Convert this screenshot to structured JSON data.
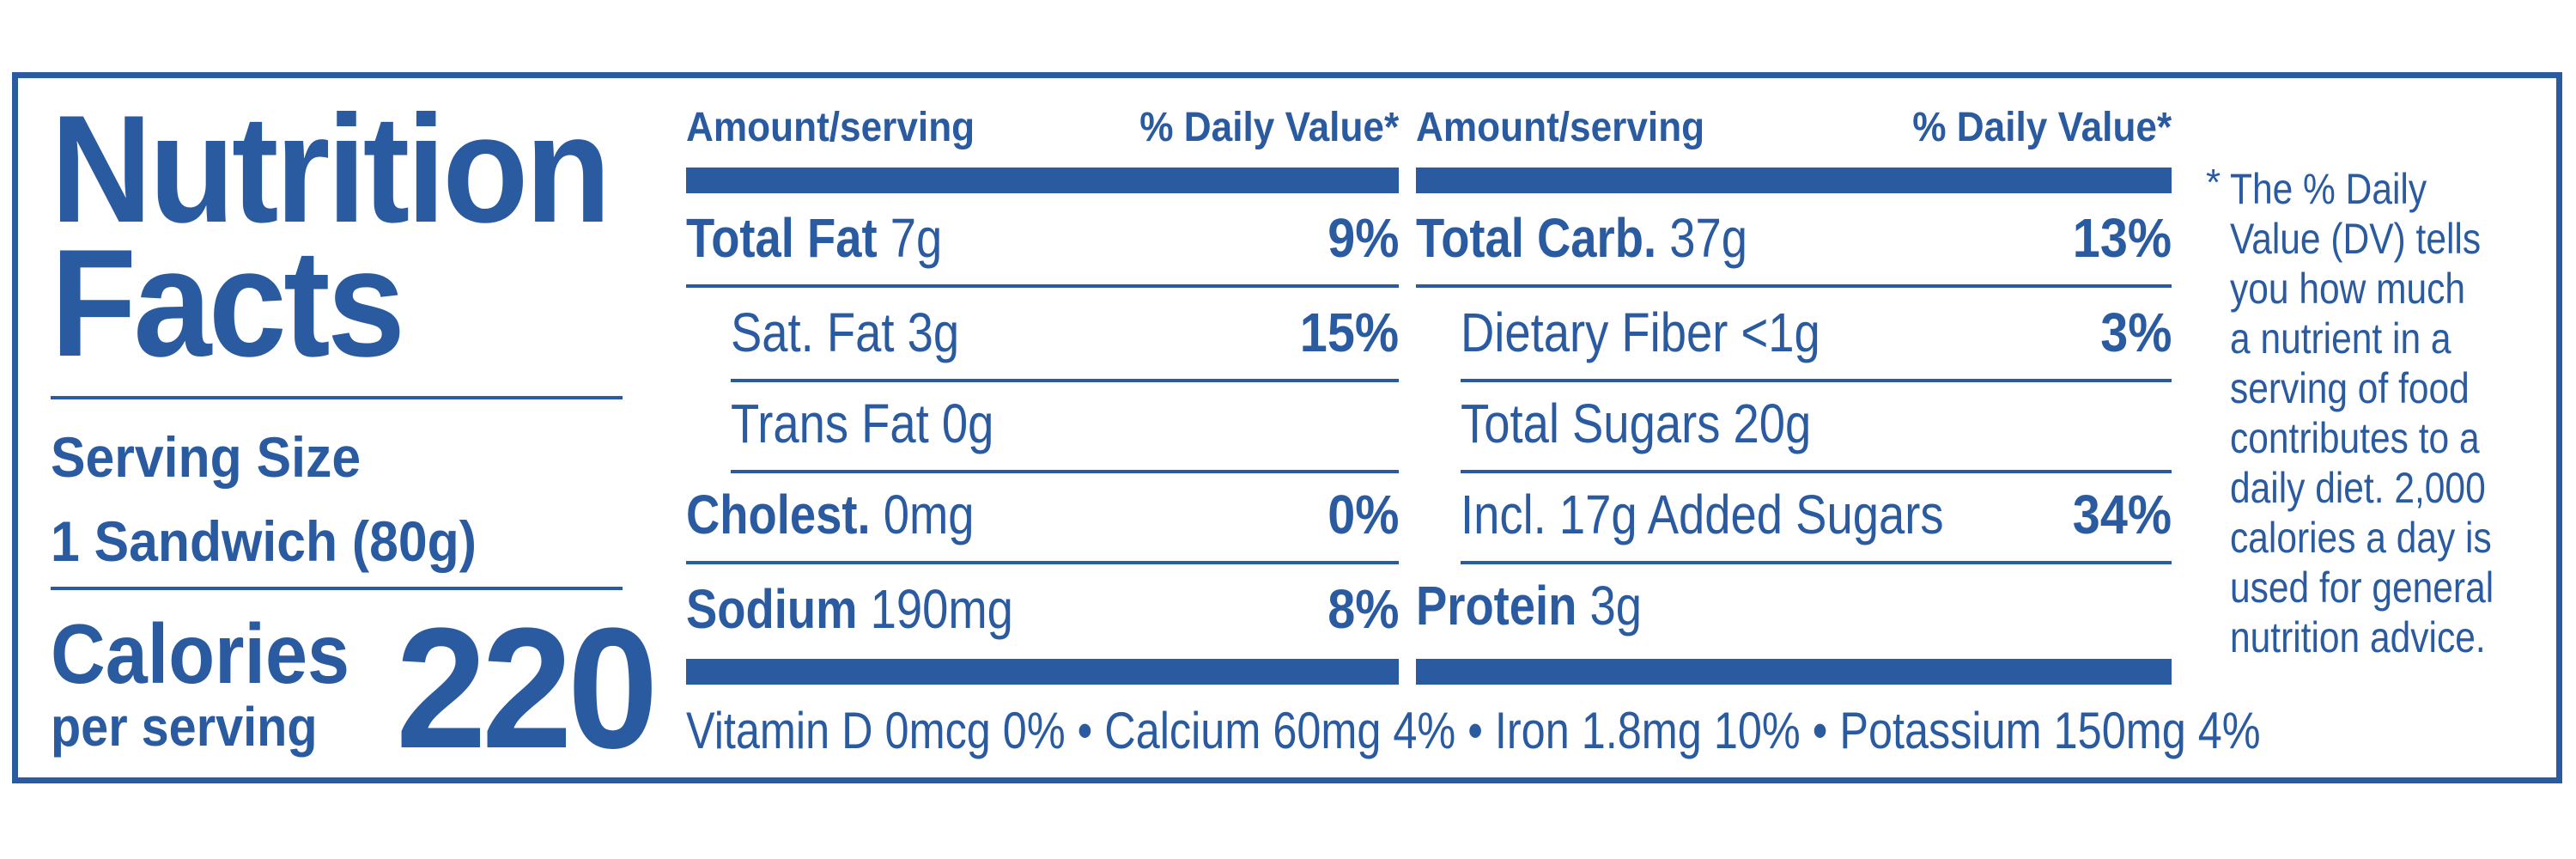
{
  "title_lines": [
    "Nutrition",
    "Facts"
  ],
  "serving": {
    "label": "Serving Size",
    "value": "1 Sandwich (80g)"
  },
  "calories": {
    "label": "Calories",
    "sub": "per serving",
    "value": "220"
  },
  "header": {
    "amount": "Amount/serving",
    "dv": "% Daily Value*"
  },
  "left_rows": [
    {
      "name": "Total Fat",
      "amount": " 7g",
      "dv": "9%"
    },
    {
      "name": "",
      "amount": "Sat. Fat 3g",
      "dv": "15%"
    },
    {
      "name": "",
      "amount": "Trans Fat 0g",
      "dv": ""
    },
    {
      "name": "Cholest.",
      "amount": " 0mg",
      "dv": "0%"
    },
    {
      "name": "Sodium",
      "amount": " 190mg",
      "dv": "8%"
    }
  ],
  "right_rows": [
    {
      "name": "Total Carb.",
      "amount": " 37g",
      "dv": "13%"
    },
    {
      "name": "",
      "amount": "Dietary Fiber <1g",
      "dv": "3%"
    },
    {
      "name": "",
      "amount": "Total Sugars 20g",
      "dv": ""
    },
    {
      "name": "",
      "amount": "Incl. 17g Added Sugars",
      "dv": "34%"
    },
    {
      "name": "Protein",
      "amount": " 3g",
      "dv": ""
    }
  ],
  "vitamins": "Vitamin D 0mcg 0% • Calcium 60mg 4% • Iron 1.8mg 10% • Potassium 150mg 4%",
  "footnote": {
    "star": "*",
    "lines": [
      "The % Daily",
      "Value (DV) tells",
      "you how much",
      "a nutrient in a",
      "serving of food",
      "contributes to a",
      "daily diet. 2,000",
      "calories a day is",
      "used for general",
      "nutrition advice."
    ]
  },
  "colors": {
    "ink": "#2a5aa0",
    "background": "#ffffff"
  }
}
